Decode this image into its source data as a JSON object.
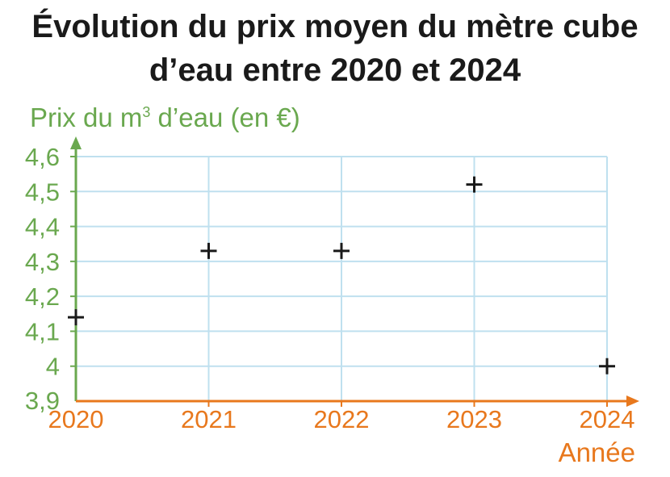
{
  "title_line1": "Évolution du prix moyen du mètre cube",
  "title_line2": "d’eau entre 2020 et 2024",
  "chart_data": {
    "type": "scatter",
    "marker": "plus",
    "title": "Évolution du prix moyen du mètre cube d’eau entre 2020 et 2024",
    "ylabel_main": "Prix du m",
    "ylabel_sup": "3",
    "ylabel_rest": " d’eau (en €)",
    "xlabel": "Année",
    "x": [
      2020,
      2021,
      2022,
      2023,
      2024
    ],
    "y": [
      4.14,
      4.33,
      4.33,
      4.52,
      4.0
    ],
    "xlim": [
      2020,
      2024
    ],
    "ylim": [
      3.9,
      4.6
    ],
    "xticks": [
      "2020",
      "2021",
      "2022",
      "2023",
      "2024"
    ],
    "yticks": [
      "3,9",
      "4",
      "4,1",
      "4,2",
      "4,3",
      "4,4",
      "4,5",
      "4,6"
    ],
    "grid": true,
    "y_axis_color": "#6aa84f",
    "x_axis_color": "#e8781d",
    "grid_color": "#bfe0ef",
    "marker_color": "#1a1a1a"
  }
}
